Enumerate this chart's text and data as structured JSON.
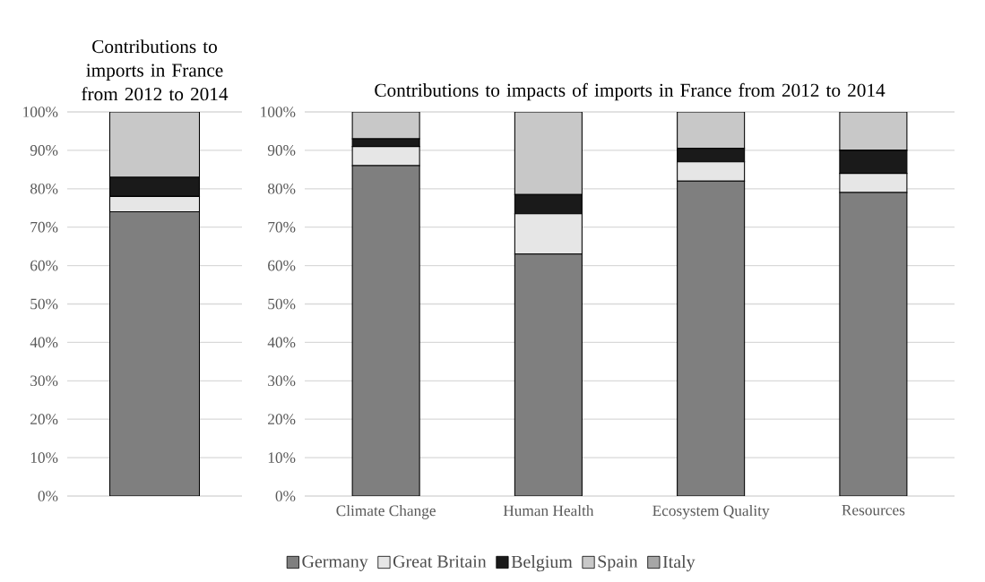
{
  "chart_data": [
    {
      "type": "bar",
      "stacked": true,
      "title": "Contributions to imports in France from 2012 to 2014",
      "categories": [
        null
      ],
      "ylim": [
        0,
        100
      ],
      "yticks": [
        {
          "value": 0,
          "label": "0%"
        },
        {
          "value": 10,
          "label": "10%"
        },
        {
          "value": 20,
          "label": "20%"
        },
        {
          "value": 30,
          "label": "30%"
        },
        {
          "value": 40,
          "label": "40%"
        },
        {
          "value": 50,
          "label": "50%"
        },
        {
          "value": 60,
          "label": "60%"
        },
        {
          "value": 70,
          "label": "70%"
        },
        {
          "value": 80,
          "label": "80%"
        },
        {
          "value": 90,
          "label": "90%"
        },
        {
          "value": 100,
          "label": "100%"
        }
      ],
      "grid": "y",
      "series": [
        {
          "color": "#7f7f7f",
          "values": [
            74
          ]
        },
        {
          "color": "#e6e6e6",
          "values": [
            4
          ]
        },
        {
          "color": "#1a1a1a",
          "values": [
            5
          ]
        },
        {
          "color": "#c8c8c8",
          "values": [
            17
          ]
        },
        {
          "color": "#a6a6a6",
          "values": [
            0
          ]
        }
      ]
    },
    {
      "type": "bar",
      "stacked": true,
      "title": "Contributions to impacts of imports in France from 2012 to 2014",
      "categories": [
        "Climate Change",
        "Human Health",
        "Ecosystem Quality",
        "Resources"
      ],
      "ylim": [
        0,
        100
      ],
      "yticks": [
        {
          "value": 0,
          "label": "0%"
        },
        {
          "value": 10,
          "label": "10%"
        },
        {
          "value": 20,
          "label": "20%"
        },
        {
          "value": 30,
          "label": "30%"
        },
        {
          "value": 40,
          "label": "40%"
        },
        {
          "value": 50,
          "label": "50%"
        },
        {
          "value": 60,
          "label": "60%"
        },
        {
          "value": 70,
          "label": "70%"
        },
        {
          "value": 80,
          "label": "80%"
        },
        {
          "value": 90,
          "label": "90%"
        },
        {
          "value": 100,
          "label": "100%"
        }
      ],
      "grid": "y",
      "legend": "bottom",
      "series": [
        {
          "name": "Germany",
          "color": "#7f7f7f",
          "values": [
            86,
            63,
            82,
            79
          ]
        },
        {
          "name": "Great Britain",
          "color": "#e6e6e6",
          "values": [
            5,
            10.5,
            5,
            5
          ]
        },
        {
          "name": "Belgium",
          "color": "#1a1a1a",
          "values": [
            2,
            5,
            3.5,
            6
          ]
        },
        {
          "name": "Spain",
          "color": "#c8c8c8",
          "values": [
            7,
            21.5,
            9.5,
            10
          ]
        },
        {
          "name": "Italy",
          "color": "#a6a6a6",
          "values": [
            0,
            0,
            0,
            0
          ]
        }
      ]
    }
  ]
}
